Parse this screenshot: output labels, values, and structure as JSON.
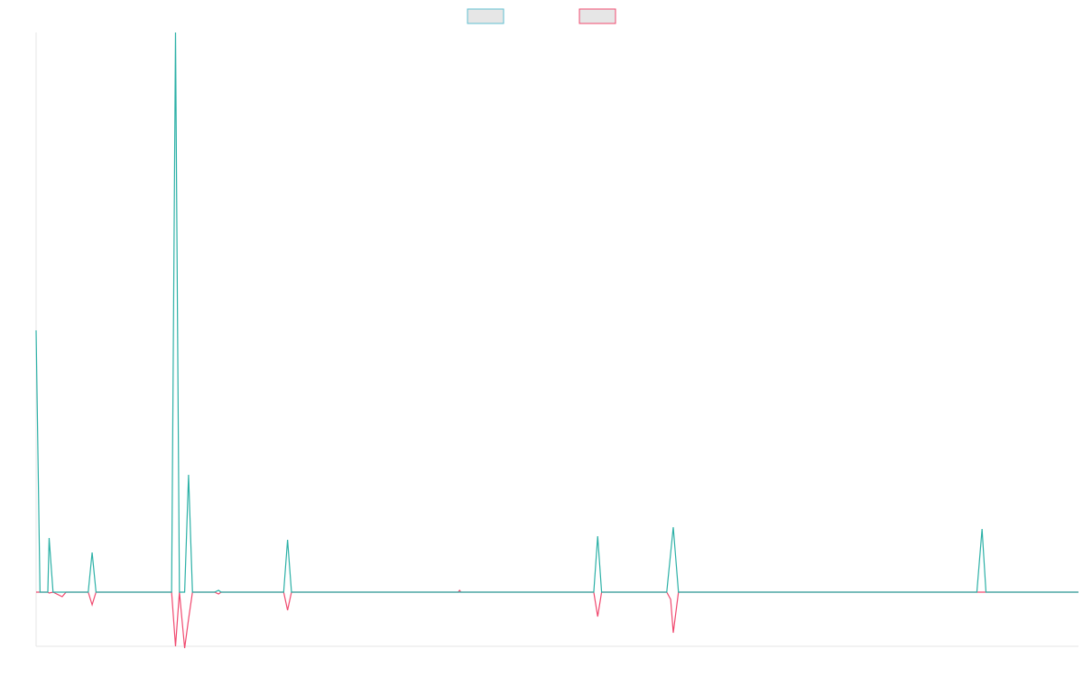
{
  "chart_data": {
    "type": "line",
    "title": "",
    "xlabel": "",
    "ylabel": "",
    "legend_position": "top-center",
    "grid": false,
    "x_count": 80,
    "ylim": [
      -60,
      620
    ],
    "series": [
      {
        "color": "#2bb0a6",
        "legend_swatch_color": "#5fbfd0",
        "points": [
          [
            0,
            290
          ],
          [
            0.3,
            0
          ],
          [
            0.9,
            0
          ],
          [
            1,
            60
          ],
          [
            1.3,
            0
          ],
          [
            2,
            0
          ],
          [
            4,
            0
          ],
          [
            4.3,
            44
          ],
          [
            4.6,
            0
          ],
          [
            10.4,
            0
          ],
          [
            10.7,
            620
          ],
          [
            11,
            0
          ],
          [
            11.4,
            0
          ],
          [
            11.7,
            130
          ],
          [
            12,
            0
          ],
          [
            13.7,
            0
          ],
          [
            14,
            2
          ],
          [
            14.2,
            0
          ],
          [
            19,
            0
          ],
          [
            19.3,
            58
          ],
          [
            19.6,
            0
          ],
          [
            32.4,
            0
          ],
          [
            32.5,
            0
          ],
          [
            32.6,
            0
          ],
          [
            42.8,
            0
          ],
          [
            43.1,
            62
          ],
          [
            43.4,
            0
          ],
          [
            48.4,
            0
          ],
          [
            48.9,
            72
          ],
          [
            49.3,
            0
          ],
          [
            72.2,
            0
          ],
          [
            72.6,
            70
          ],
          [
            72.9,
            0
          ],
          [
            80,
            0
          ]
        ]
      },
      {
        "color": "#f0486e",
        "legend_swatch_color": "#f0486e",
        "points": [
          [
            0,
            0
          ],
          [
            0.9,
            0
          ],
          [
            1,
            -1
          ],
          [
            1.3,
            0
          ],
          [
            2,
            -5
          ],
          [
            2.3,
            0
          ],
          [
            4,
            0
          ],
          [
            4.3,
            -14
          ],
          [
            4.6,
            0
          ],
          [
            10.4,
            0
          ],
          [
            10.7,
            -60
          ],
          [
            11,
            0
          ],
          [
            11.4,
            -62
          ],
          [
            11.7,
            -30
          ],
          [
            12,
            0
          ],
          [
            13.7,
            0
          ],
          [
            14,
            -2
          ],
          [
            14.2,
            0
          ],
          [
            19,
            0
          ],
          [
            19.3,
            -20
          ],
          [
            19.6,
            0
          ],
          [
            32.4,
            0
          ],
          [
            32.5,
            2
          ],
          [
            32.6,
            0
          ],
          [
            42.8,
            0
          ],
          [
            43.1,
            -27
          ],
          [
            43.4,
            0
          ],
          [
            48.4,
            0
          ],
          [
            48.7,
            -8
          ],
          [
            48.9,
            -45
          ],
          [
            49.3,
            0
          ],
          [
            80,
            0
          ]
        ]
      }
    ]
  }
}
